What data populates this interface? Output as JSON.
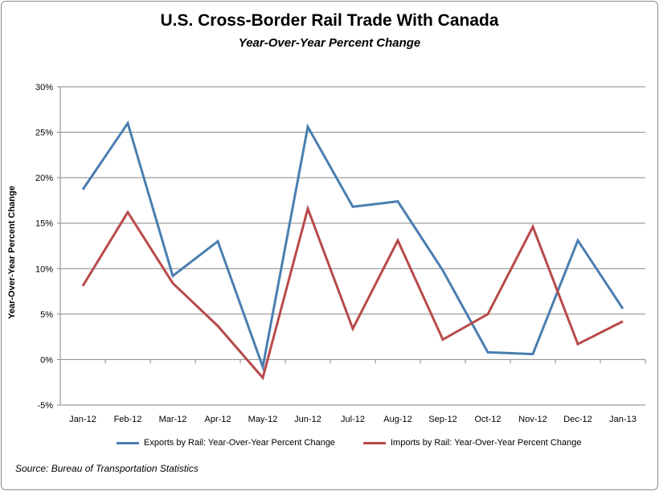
{
  "title": "U.S. Cross-Border Rail Trade With Canada",
  "subtitle": "Year-Over-Year Percent Change",
  "source": "Source: Bureau of Transportation Statistics",
  "chart_data": {
    "type": "line",
    "title": "U.S. Cross-Border Rail Trade With Canada",
    "subtitle": "Year-Over-Year Percent Change",
    "xlabel": "",
    "ylabel": "Year-Over-Year Percent Change",
    "categories": [
      "Jan-12",
      "Feb-12",
      "Mar-12",
      "Apr-12",
      "May-12",
      "Jun-12",
      "Jul-12",
      "Aug-12",
      "Sep-12",
      "Oct-12",
      "Nov-12",
      "Dec-12",
      "Jan-13"
    ],
    "ylim": [
      -5,
      30
    ],
    "yticks": [
      -5,
      0,
      5,
      10,
      15,
      20,
      25,
      30
    ],
    "ytick_labels": [
      "-5%",
      "0%",
      "5%",
      "10%",
      "15%",
      "20%",
      "25%",
      "30%"
    ],
    "grid": true,
    "legend_position": "bottom",
    "series": [
      {
        "name": "Exports by Rail: Year-Over-Year Percent Change",
        "color": "#4a7eb0",
        "values": [
          18.7,
          26.0,
          9.2,
          13.0,
          -0.8,
          25.6,
          16.8,
          17.4,
          9.8,
          0.8,
          0.6,
          13.1,
          5.6
        ]
      },
      {
        "name": "Imports by Rail: Year-Over-Year Percent Change",
        "color": "#b84a4a",
        "values": [
          8.1,
          16.2,
          8.4,
          3.7,
          -2.0,
          16.6,
          3.4,
          13.1,
          2.2,
          5.0,
          14.6,
          1.7,
          4.2
        ]
      }
    ]
  }
}
